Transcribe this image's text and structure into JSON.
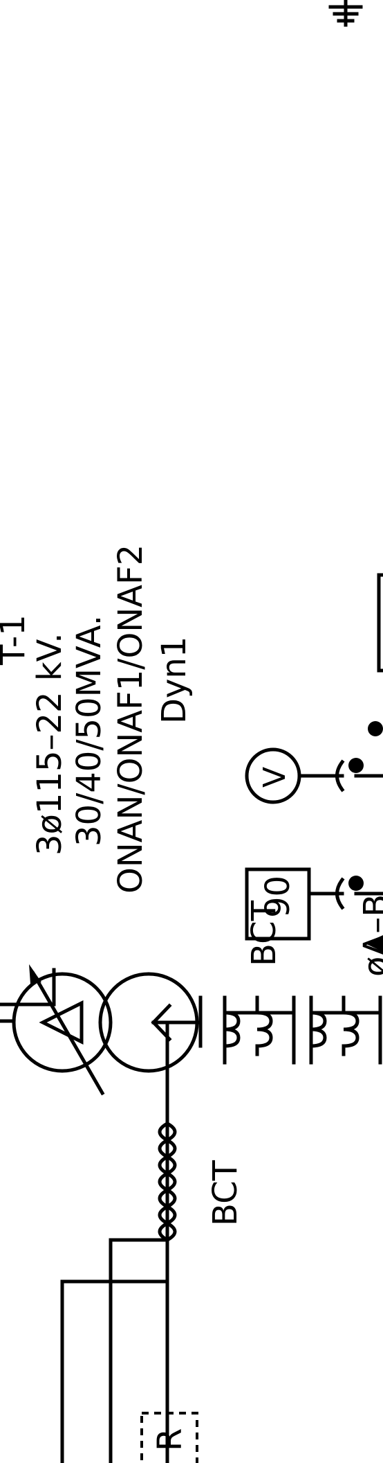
{
  "transformer": {
    "name_fragment": "T-1",
    "voltage_rating": "3ø115–22 kV.",
    "power_rating": "30/40/50MVA.",
    "cooling": "ONAN/ONAF1/ONAF2",
    "vector_group": "Dyn1"
  },
  "labels": {
    "bct_upper": "BCT",
    "bct_lower": "BCT",
    "phase": "øA–B",
    "relay_90": "90",
    "voltmeter": "V",
    "relay_r": "R"
  },
  "icons": {
    "transformer": "two-winding-transformer-with-tap-changer-icon",
    "ground": "ground-icon",
    "voltmeter": "voltmeter-circle-icon",
    "ct": "current-transformer-coil-icon"
  }
}
